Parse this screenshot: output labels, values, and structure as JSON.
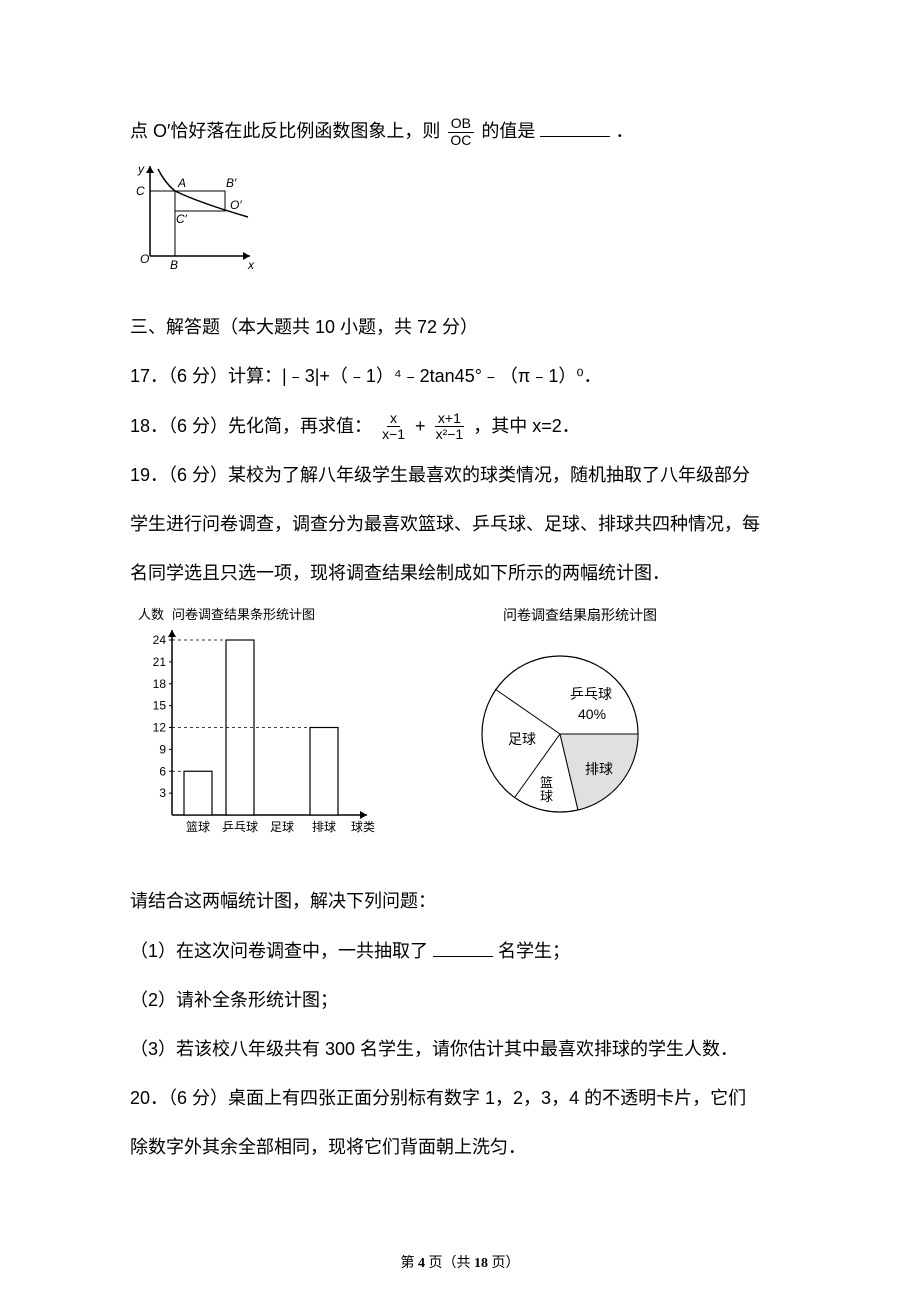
{
  "q16": {
    "text_before": "点 O′恰好落在此反比例函数图象上，则",
    "frac_num": "OB",
    "frac_den": "OC",
    "text_after": "的值是",
    "tail": "．",
    "graph": {
      "width": 130,
      "height": 110,
      "axis_color": "#000000",
      "labels": {
        "O": "O",
        "x": "x",
        "y": "y",
        "A": "A",
        "B": "B",
        "Bp": "B′",
        "C": "C",
        "Cp": "C′",
        "Op": "O′"
      }
    }
  },
  "section3": "三、解答题（本大题共 10 小题，共 72 分）",
  "q17": "17．（6 分）计算：|﹣3|+（﹣1）⁴﹣2tan45°﹣（π﹣1）⁰．",
  "q18": {
    "prefix": "18．（6 分）先化简，再求值：",
    "f1n": "x",
    "f1d": "x−1",
    "plus": "+",
    "f2n": "x+1",
    "f2d": "x²−1",
    "suffix": "，其中 x=2．"
  },
  "q19": {
    "l1": "19．（6 分）某校为了解八年级学生最喜欢的球类情况，随机抽取了八年级部分",
    "l2": "学生进行问卷调查，调查分为最喜欢篮球、乒乓球、足球、排球共四种情况，每",
    "l3": "名同学选且只选一项，现将调查结果绘制成如下所示的两幅统计图．",
    "bar": {
      "title": "问卷调查结果条形统计图",
      "ylabel": "人数",
      "xlabel": "球类",
      "yticks": [
        3,
        6,
        9,
        12,
        15,
        18,
        21,
        24
      ],
      "categories": [
        "篮球",
        "乒乓球",
        "足球",
        "排球"
      ],
      "values": [
        6,
        24,
        null,
        12
      ],
      "bar_color": "#ffffff",
      "bar_border": "#000000",
      "axis_color": "#000000",
      "grid_dash": "3,3"
    },
    "pie": {
      "title": "问卷调查结果扇形统计图",
      "labels": {
        "pingpong": "乒乓球",
        "pingpong_pct": "40%",
        "football": "足球",
        "volleyball": "排球",
        "basketball": "篮球"
      },
      "stroke": "#000000",
      "fill": "#ffffff"
    },
    "sub_hdr": "请结合这两幅统计图，解决下列问题：",
    "sub1a": "（1）在这次问卷调查中，一共抽取了",
    "sub1b": "名学生；",
    "sub2": "（2）请补全条形统计图；",
    "sub3": "（3）若该校八年级共有 300 名学生，请你估计其中最喜欢排球的学生人数．"
  },
  "q20": {
    "l1": "20．（6 分）桌面上有四张正面分别标有数字 1，2，3，4 的不透明卡片，它们",
    "l2": "除数字外其余全部相同，现将它们背面朝上洗匀．"
  },
  "footer": {
    "a": "第 ",
    "b": "4",
    "c": " 页（共 ",
    "d": "18",
    "e": " 页）"
  }
}
